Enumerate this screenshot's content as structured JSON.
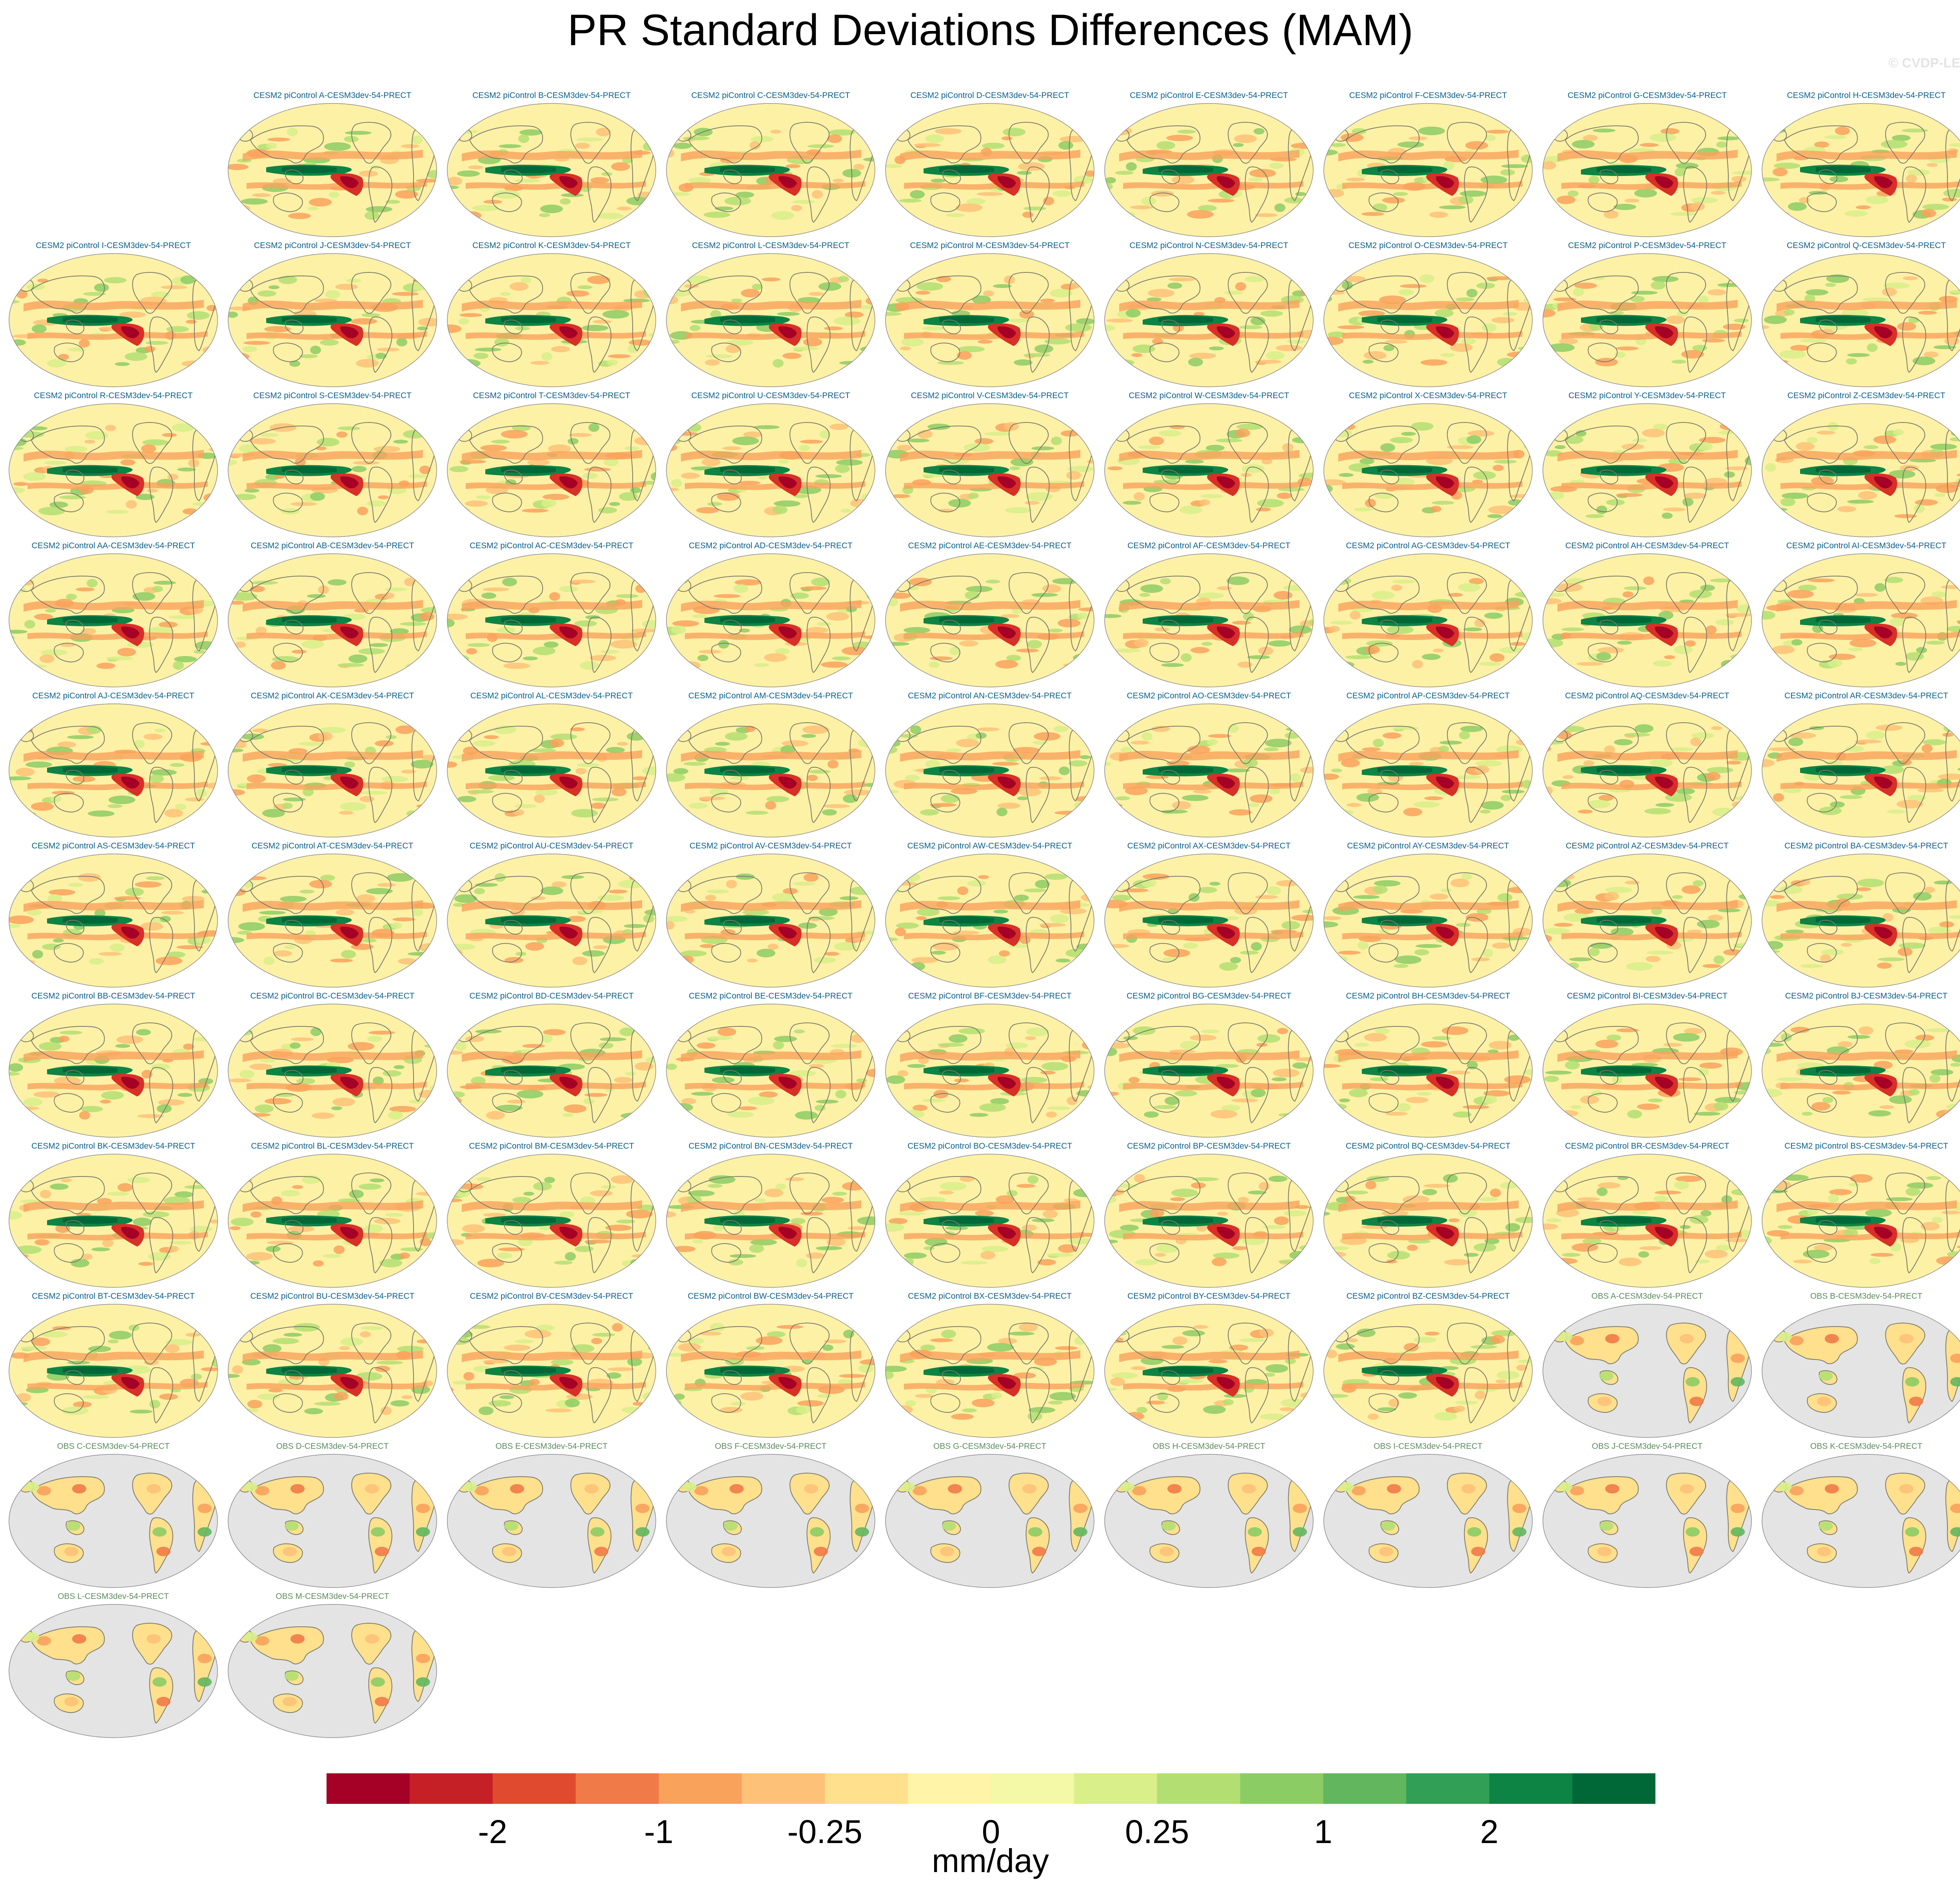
{
  "title": "PR Standard Deviations Differences (MAM)",
  "watermark": "© CVDP-LE",
  "panels": [
    {
      "label": "CESM2 piControl A-CESM3dev-54-PRECT",
      "type": "model"
    },
    {
      "label": "CESM2 piControl B-CESM3dev-54-PRECT",
      "type": "model"
    },
    {
      "label": "CESM2 piControl C-CESM3dev-54-PRECT",
      "type": "model"
    },
    {
      "label": "CESM2 piControl D-CESM3dev-54-PRECT",
      "type": "model"
    },
    {
      "label": "CESM2 piControl E-CESM3dev-54-PRECT",
      "type": "model"
    },
    {
      "label": "CESM2 piControl F-CESM3dev-54-PRECT",
      "type": "model"
    },
    {
      "label": "CESM2 piControl G-CESM3dev-54-PRECT",
      "type": "model"
    },
    {
      "label": "CESM2 piControl H-CESM3dev-54-PRECT",
      "type": "model"
    },
    {
      "label": "CESM2 piControl I-CESM3dev-54-PRECT",
      "type": "model"
    },
    {
      "label": "CESM2 piControl J-CESM3dev-54-PRECT",
      "type": "model"
    },
    {
      "label": "CESM2 piControl K-CESM3dev-54-PRECT",
      "type": "model"
    },
    {
      "label": "CESM2 piControl L-CESM3dev-54-PRECT",
      "type": "model"
    },
    {
      "label": "CESM2 piControl M-CESM3dev-54-PRECT",
      "type": "model"
    },
    {
      "label": "CESM2 piControl N-CESM3dev-54-PRECT",
      "type": "model"
    },
    {
      "label": "CESM2 piControl O-CESM3dev-54-PRECT",
      "type": "model"
    },
    {
      "label": "CESM2 piControl P-CESM3dev-54-PRECT",
      "type": "model"
    },
    {
      "label": "CESM2 piControl Q-CESM3dev-54-PRECT",
      "type": "model"
    },
    {
      "label": "CESM2 piControl R-CESM3dev-54-PRECT",
      "type": "model"
    },
    {
      "label": "CESM2 piControl S-CESM3dev-54-PRECT",
      "type": "model"
    },
    {
      "label": "CESM2 piControl T-CESM3dev-54-PRECT",
      "type": "model"
    },
    {
      "label": "CESM2 piControl U-CESM3dev-54-PRECT",
      "type": "model"
    },
    {
      "label": "CESM2 piControl V-CESM3dev-54-PRECT",
      "type": "model"
    },
    {
      "label": "CESM2 piControl W-CESM3dev-54-PRECT",
      "type": "model"
    },
    {
      "label": "CESM2 piControl X-CESM3dev-54-PRECT",
      "type": "model"
    },
    {
      "label": "CESM2 piControl Y-CESM3dev-54-PRECT",
      "type": "model"
    },
    {
      "label": "CESM2 piControl Z-CESM3dev-54-PRECT",
      "type": "model"
    },
    {
      "label": "CESM2 piControl AA-CESM3dev-54-PRECT",
      "type": "model"
    },
    {
      "label": "CESM2 piControl AB-CESM3dev-54-PRECT",
      "type": "model"
    },
    {
      "label": "CESM2 piControl AC-CESM3dev-54-PRECT",
      "type": "model"
    },
    {
      "label": "CESM2 piControl AD-CESM3dev-54-PRECT",
      "type": "model"
    },
    {
      "label": "CESM2 piControl AE-CESM3dev-54-PRECT",
      "type": "model"
    },
    {
      "label": "CESM2 piControl AF-CESM3dev-54-PRECT",
      "type": "model"
    },
    {
      "label": "CESM2 piControl AG-CESM3dev-54-PRECT",
      "type": "model"
    },
    {
      "label": "CESM2 piControl AH-CESM3dev-54-PRECT",
      "type": "model"
    },
    {
      "label": "CESM2 piControl AI-CESM3dev-54-PRECT",
      "type": "model"
    },
    {
      "label": "CESM2 piControl AJ-CESM3dev-54-PRECT",
      "type": "model"
    },
    {
      "label": "CESM2 piControl AK-CESM3dev-54-PRECT",
      "type": "model"
    },
    {
      "label": "CESM2 piControl AL-CESM3dev-54-PRECT",
      "type": "model"
    },
    {
      "label": "CESM2 piControl AM-CESM3dev-54-PRECT",
      "type": "model"
    },
    {
      "label": "CESM2 piControl AN-CESM3dev-54-PRECT",
      "type": "model"
    },
    {
      "label": "CESM2 piControl AO-CESM3dev-54-PRECT",
      "type": "model"
    },
    {
      "label": "CESM2 piControl AP-CESM3dev-54-PRECT",
      "type": "model"
    },
    {
      "label": "CESM2 piControl AQ-CESM3dev-54-PRECT",
      "type": "model"
    },
    {
      "label": "CESM2 piControl AR-CESM3dev-54-PRECT",
      "type": "model"
    },
    {
      "label": "CESM2 piControl AS-CESM3dev-54-PRECT",
      "type": "model"
    },
    {
      "label": "CESM2 piControl AT-CESM3dev-54-PRECT",
      "type": "model"
    },
    {
      "label": "CESM2 piControl AU-CESM3dev-54-PRECT",
      "type": "model"
    },
    {
      "label": "CESM2 piControl AV-CESM3dev-54-PRECT",
      "type": "model"
    },
    {
      "label": "CESM2 piControl AW-CESM3dev-54-PRECT",
      "type": "model"
    },
    {
      "label": "CESM2 piControl AX-CESM3dev-54-PRECT",
      "type": "model"
    },
    {
      "label": "CESM2 piControl AY-CESM3dev-54-PRECT",
      "type": "model"
    },
    {
      "label": "CESM2 piControl AZ-CESM3dev-54-PRECT",
      "type": "model"
    },
    {
      "label": "CESM2 piControl BA-CESM3dev-54-PRECT",
      "type": "model"
    },
    {
      "label": "CESM2 piControl BB-CESM3dev-54-PRECT",
      "type": "model"
    },
    {
      "label": "CESM2 piControl BC-CESM3dev-54-PRECT",
      "type": "model"
    },
    {
      "label": "CESM2 piControl BD-CESM3dev-54-PRECT",
      "type": "model"
    },
    {
      "label": "CESM2 piControl BE-CESM3dev-54-PRECT",
      "type": "model"
    },
    {
      "label": "CESM2 piControl BF-CESM3dev-54-PRECT",
      "type": "model"
    },
    {
      "label": "CESM2 piControl BG-CESM3dev-54-PRECT",
      "type": "model"
    },
    {
      "label": "CESM2 piControl BH-CESM3dev-54-PRECT",
      "type": "model"
    },
    {
      "label": "CESM2 piControl BI-CESM3dev-54-PRECT",
      "type": "model"
    },
    {
      "label": "CESM2 piControl BJ-CESM3dev-54-PRECT",
      "type": "model"
    },
    {
      "label": "CESM2 piControl BK-CESM3dev-54-PRECT",
      "type": "model"
    },
    {
      "label": "CESM2 piControl BL-CESM3dev-54-PRECT",
      "type": "model"
    },
    {
      "label": "CESM2 piControl BM-CESM3dev-54-PRECT",
      "type": "model"
    },
    {
      "label": "CESM2 piControl BN-CESM3dev-54-PRECT",
      "type": "model"
    },
    {
      "label": "CESM2 piControl BO-CESM3dev-54-PRECT",
      "type": "model"
    },
    {
      "label": "CESM2 piControl BP-CESM3dev-54-PRECT",
      "type": "model"
    },
    {
      "label": "CESM2 piControl BQ-CESM3dev-54-PRECT",
      "type": "model"
    },
    {
      "label": "CESM2 piControl BR-CESM3dev-54-PRECT",
      "type": "model"
    },
    {
      "label": "CESM2 piControl BS-CESM3dev-54-PRECT",
      "type": "model"
    },
    {
      "label": "CESM2 piControl BT-CESM3dev-54-PRECT",
      "type": "model"
    },
    {
      "label": "CESM2 piControl BU-CESM3dev-54-PRECT",
      "type": "model"
    },
    {
      "label": "CESM2 piControl BV-CESM3dev-54-PRECT",
      "type": "model"
    },
    {
      "label": "CESM2 piControl BW-CESM3dev-54-PRECT",
      "type": "model"
    },
    {
      "label": "CESM2 piControl BX-CESM3dev-54-PRECT",
      "type": "model"
    },
    {
      "label": "CESM2 piControl BY-CESM3dev-54-PRECT",
      "type": "model"
    },
    {
      "label": "CESM2 piControl BZ-CESM3dev-54-PRECT",
      "type": "model"
    },
    {
      "label": "OBS A-CESM3dev-54-PRECT",
      "type": "obs"
    },
    {
      "label": "OBS B-CESM3dev-54-PRECT",
      "type": "obs"
    },
    {
      "label": "OBS C-CESM3dev-54-PRECT",
      "type": "obs"
    },
    {
      "label": "OBS D-CESM3dev-54-PRECT",
      "type": "obs"
    },
    {
      "label": "OBS E-CESM3dev-54-PRECT",
      "type": "obs"
    },
    {
      "label": "OBS F-CESM3dev-54-PRECT",
      "type": "obs"
    },
    {
      "label": "OBS G-CESM3dev-54-PRECT",
      "type": "obs"
    },
    {
      "label": "OBS H-CESM3dev-54-PRECT",
      "type": "obs"
    },
    {
      "label": "OBS I-CESM3dev-54-PRECT",
      "type": "obs"
    },
    {
      "label": "OBS J-CESM3dev-54-PRECT",
      "type": "obs"
    },
    {
      "label": "OBS K-CESM3dev-54-PRECT",
      "type": "obs"
    },
    {
      "label": "OBS L-CESM3dev-54-PRECT",
      "type": "obs"
    },
    {
      "label": "OBS M-CESM3dev-54-PRECT",
      "type": "obs"
    }
  ],
  "colorbar": {
    "title": "mm/day",
    "colors": [
      "#a50026",
      "#c62027",
      "#e04a2f",
      "#f07a48",
      "#f9a25c",
      "#fdc278",
      "#fee08d",
      "#fff4a8",
      "#f3f9a6",
      "#d8ef8a",
      "#b3df72",
      "#8ccc64",
      "#62b75e",
      "#319f55",
      "#0d8444",
      "#006837"
    ],
    "tick_labels": [
      "-2",
      "-1",
      "-0.25",
      "0",
      "0.25",
      "1",
      "2"
    ]
  },
  "map_colors": {
    "ocean_base": "#fdf1a6",
    "land_missing": "#e4e4e4",
    "coast": "#7a7a6a",
    "equatorial_positive": "#0d8444",
    "eastern_pacific_negative": "#d73027",
    "outline": "#888888"
  }
}
